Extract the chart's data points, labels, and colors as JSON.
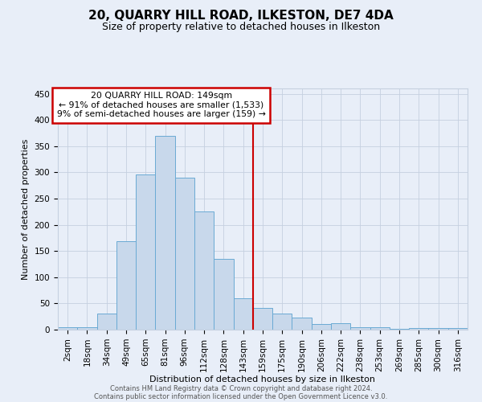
{
  "title": "20, QUARRY HILL ROAD, ILKESTON, DE7 4DA",
  "subtitle": "Size of property relative to detached houses in Ilkeston",
  "xlabel": "Distribution of detached houses by size in Ilkeston",
  "ylabel": "Number of detached properties",
  "bar_color": "#c8d8eb",
  "bar_edge_color": "#6aaad4",
  "background_color": "#e8eef8",
  "categories": [
    "2sqm",
    "18sqm",
    "34sqm",
    "49sqm",
    "65sqm",
    "81sqm",
    "96sqm",
    "112sqm",
    "128sqm",
    "143sqm",
    "159sqm",
    "175sqm",
    "190sqm",
    "206sqm",
    "222sqm",
    "238sqm",
    "253sqm",
    "269sqm",
    "285sqm",
    "300sqm",
    "316sqm"
  ],
  "values": [
    4,
    4,
    30,
    168,
    296,
    370,
    290,
    225,
    135,
    60,
    42,
    30,
    23,
    11,
    13,
    5,
    5,
    2,
    3,
    3,
    3
  ],
  "vline_position": 9.5,
  "vline_color": "#cc0000",
  "annotation_line1": "20 QUARRY HILL ROAD: 149sqm",
  "annotation_line2": "← 91% of detached houses are smaller (1,533)",
  "annotation_line3": "9% of semi-detached houses are larger (159) →",
  "annotation_box_color": "#cc0000",
  "annotation_bg": "#ffffff",
  "ylim": [
    0,
    460
  ],
  "yticks": [
    0,
    50,
    100,
    150,
    200,
    250,
    300,
    350,
    400,
    450
  ],
  "footer_line1": "Contains HM Land Registry data © Crown copyright and database right 2024.",
  "footer_line2": "Contains public sector information licensed under the Open Government Licence v3.0.",
  "grid_color": "#c5d0e0",
  "title_fontsize": 11,
  "subtitle_fontsize": 9,
  "axis_label_fontsize": 8,
  "tick_fontsize": 7.5,
  "footer_fontsize": 6
}
